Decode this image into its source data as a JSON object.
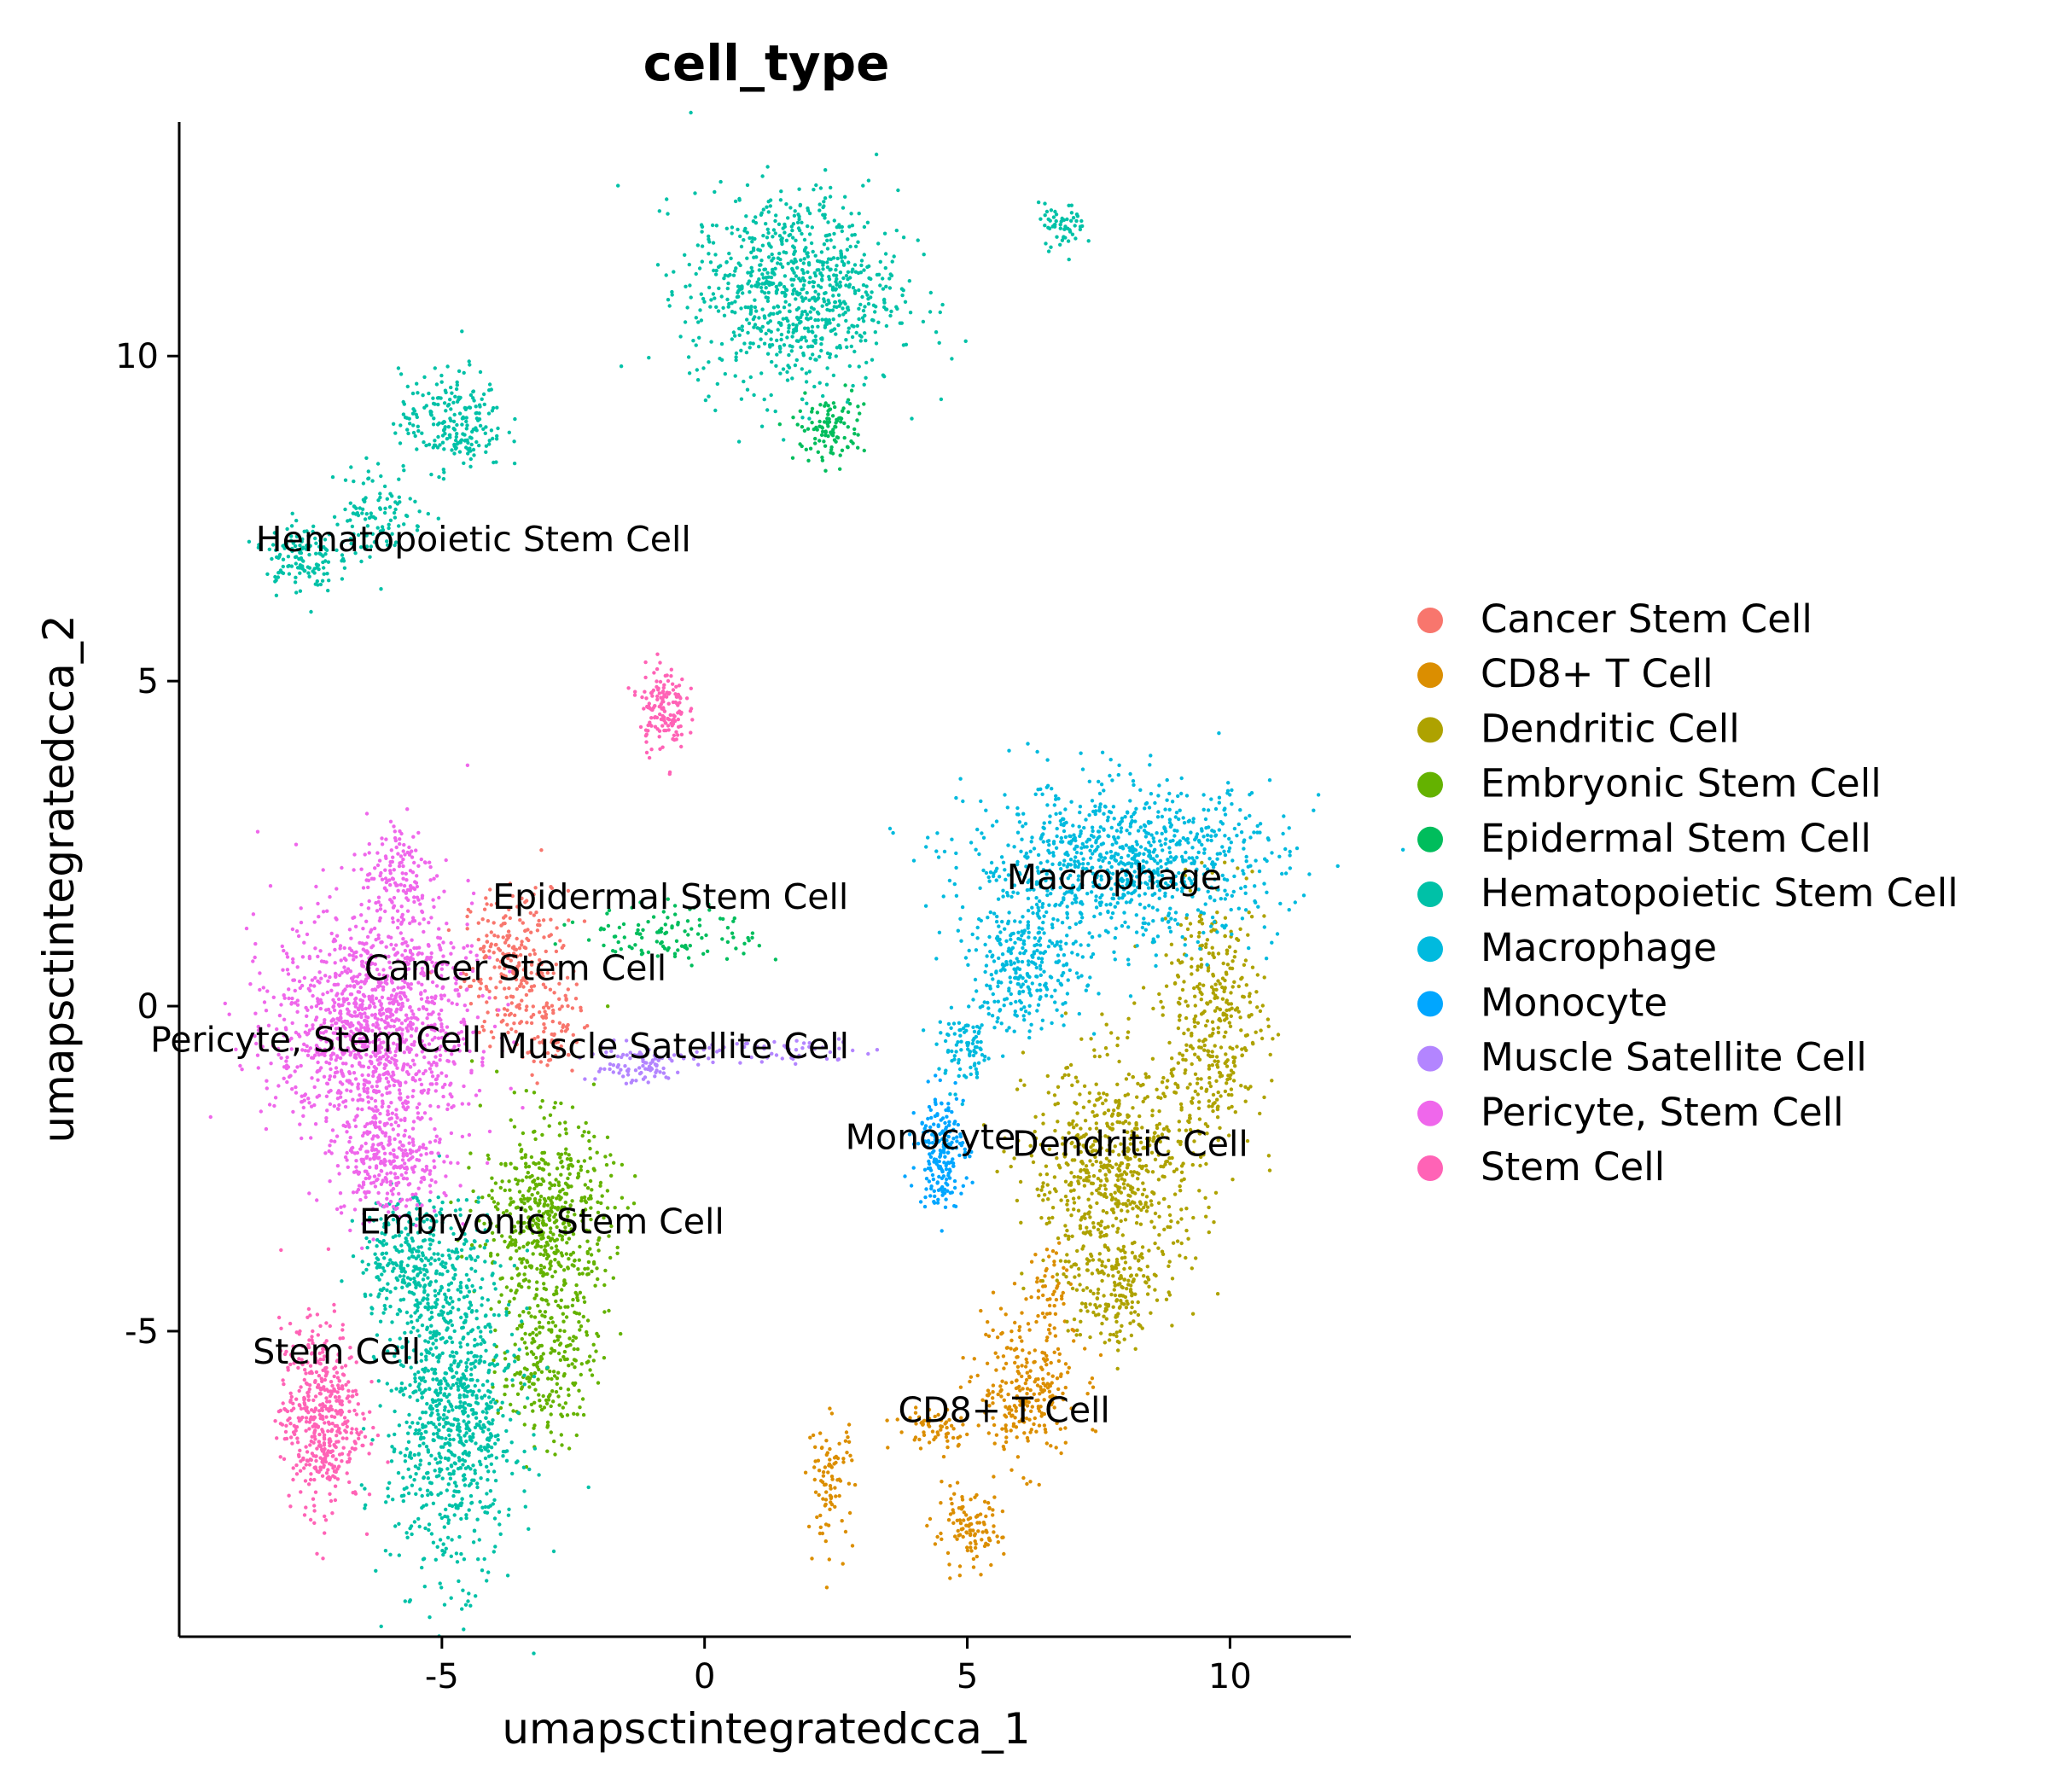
{
  "chart_data": {
    "type": "scatter",
    "title": "cell_type",
    "xlabel": "umapsctintegratedcca_1",
    "ylabel": "umapsctintegratedcca_2",
    "xlim": [
      -10,
      12.3
    ],
    "ylim": [
      -9.7,
      13.6
    ],
    "x_ticks": [
      -5,
      0,
      5,
      10
    ],
    "x_tick_labels": [
      "-5",
      "0",
      "5",
      "10"
    ],
    "y_ticks": [
      -5,
      0,
      5,
      10
    ],
    "y_tick_labels": [
      "-5",
      "0",
      "5",
      "10"
    ],
    "grid": false,
    "legend_position": "right",
    "series": [
      {
        "name": "Cancer Stem Cell",
        "color": "#F8766D",
        "label": {
          "text": "Cancer Stem Cell",
          "x": -3.6,
          "y": 0.4
        },
        "blobs": [
          {
            "cx": -3.6,
            "cy": 0.6,
            "rx": 0.9,
            "ry": 1.1,
            "n": 260
          },
          {
            "cx": -2.9,
            "cy": -0.4,
            "rx": 0.5,
            "ry": 0.6,
            "n": 60
          }
        ]
      },
      {
        "name": "CD8+ T Cell",
        "color": "#DB8E00",
        "label": {
          "text": "CD8+ T Cell",
          "x": 5.7,
          "y": -6.4
        },
        "blobs": [
          {
            "cx": 6.1,
            "cy": -5.9,
            "rx": 0.9,
            "ry": 1.0,
            "n": 260
          },
          {
            "cx": 5.0,
            "cy": -8.1,
            "rx": 0.6,
            "ry": 0.5,
            "n": 110
          },
          {
            "cx": 2.4,
            "cy": -7.3,
            "rx": 0.4,
            "ry": 0.9,
            "n": 90
          },
          {
            "cx": 4.4,
            "cy": -6.5,
            "rx": 0.7,
            "ry": 0.3,
            "n": 60
          },
          {
            "cx": 6.6,
            "cy": -4.3,
            "rx": 0.4,
            "ry": 0.7,
            "n": 50
          }
        ]
      },
      {
        "name": "Dendritic Cell",
        "color": "#AEA200",
        "label": {
          "text": "Dendritic Cell",
          "x": 8.1,
          "y": -2.3
        },
        "blobs": [
          {
            "cx": 7.8,
            "cy": -2.6,
            "rx": 1.5,
            "ry": 1.6,
            "n": 650
          },
          {
            "cx": 9.7,
            "cy": -0.2,
            "rx": 0.9,
            "ry": 1.7,
            "n": 380
          },
          {
            "cx": 7.7,
            "cy": -4.4,
            "rx": 0.8,
            "ry": 0.8,
            "n": 160
          }
        ]
      },
      {
        "name": "Embryonic Stem Cell",
        "color": "#64B200",
        "label": {
          "text": "Embryonic Stem Cell",
          "x": -3.1,
          "y": -3.5
        },
        "blobs": [
          {
            "cx": -3.0,
            "cy": -3.3,
            "rx": 1.1,
            "ry": 1.4,
            "n": 560
          },
          {
            "cx": -3.0,
            "cy": -5.4,
            "rx": 0.8,
            "ry": 1.2,
            "n": 240
          }
        ]
      },
      {
        "name": "Epidermal Stem Cell",
        "color": "#00BD5C",
        "label": {
          "text": "Epidermal Stem Cell",
          "x": -0.65,
          "y": 1.5
        },
        "blobs": [
          {
            "cx": -0.6,
            "cy": 1.1,
            "rx": 1.5,
            "ry": 0.4,
            "n": 110
          },
          {
            "cx": 2.4,
            "cy": 8.9,
            "rx": 0.6,
            "ry": 0.5,
            "n": 110
          }
        ]
      },
      {
        "name": "Hematopoietic Stem Cell",
        "color": "#00C1A7",
        "label": {
          "text": "Hematopoietic Stem Cell",
          "x": -4.4,
          "y": 7.0
        },
        "blobs": [
          {
            "cx": 1.7,
            "cy": 11.0,
            "rx": 1.8,
            "ry": 1.4,
            "n": 850
          },
          {
            "cx": -4.8,
            "cy": 9.0,
            "rx": 0.9,
            "ry": 0.7,
            "n": 220
          },
          {
            "cx": -6.2,
            "cy": 7.6,
            "rx": 0.8,
            "ry": 0.7,
            "n": 110
          },
          {
            "cx": -7.7,
            "cy": 6.9,
            "rx": 0.6,
            "ry": 0.5,
            "n": 130
          },
          {
            "cx": 6.8,
            "cy": 12.0,
            "rx": 0.4,
            "ry": 0.3,
            "n": 60
          },
          {
            "cx": -4.8,
            "cy": -6.3,
            "rx": 1.1,
            "ry": 2.2,
            "n": 900
          },
          {
            "cx": -5.5,
            "cy": -3.9,
            "rx": 1.0,
            "ry": 0.9,
            "n": 300
          }
        ]
      },
      {
        "name": "Macrophage",
        "color": "#00BADE",
        "label": {
          "text": "Macrophage",
          "x": 7.8,
          "y": 1.8
        },
        "blobs": [
          {
            "cx": 8.0,
            "cy": 2.2,
            "rx": 2.7,
            "ry": 1.1,
            "n": 950
          },
          {
            "cx": 6.1,
            "cy": 0.6,
            "rx": 1.0,
            "ry": 0.9,
            "n": 280
          },
          {
            "cx": 5.0,
            "cy": -0.7,
            "rx": 0.5,
            "ry": 0.5,
            "n": 90
          }
        ]
      },
      {
        "name": "Monocyte",
        "color": "#00A6FF",
        "label": {
          "text": "Monocyte",
          "x": 4.3,
          "y": -2.2
        },
        "blobs": [
          {
            "cx": 4.5,
            "cy": -2.2,
            "rx": 0.4,
            "ry": 0.8,
            "n": 200
          }
        ]
      },
      {
        "name": "Muscle Satellite Cell",
        "color": "#B385FF",
        "label": {
          "text": "Muscle Satellite Cell",
          "x": -0.6,
          "y": -0.8
        },
        "blobs": [
          {
            "cx": -1.4,
            "cy": -0.9,
            "rx": 0.9,
            "ry": 0.3,
            "n": 90
          },
          {
            "cx": 1.4,
            "cy": -0.7,
            "rx": 1.6,
            "ry": 0.2,
            "n": 50
          }
        ]
      },
      {
        "name": "Pericyte, Stem Cell",
        "color": "#EF67EB",
        "label": {
          "text": "Pericyte, Stem Cell",
          "x": -7.4,
          "y": -0.7
        },
        "blobs": [
          {
            "cx": -6.3,
            "cy": -0.3,
            "rx": 1.7,
            "ry": 1.7,
            "n": 1300
          },
          {
            "cx": -5.8,
            "cy": 2.1,
            "rx": 0.6,
            "ry": 0.8,
            "n": 120
          },
          {
            "cx": -6.0,
            "cy": -2.4,
            "rx": 0.9,
            "ry": 0.8,
            "n": 280
          }
        ]
      },
      {
        "name": "Stem Cell",
        "color": "#FF63B6",
        "label": {
          "text": "Stem Cell",
          "x": -7.0,
          "y": -5.5
        },
        "blobs": [
          {
            "cx": -7.3,
            "cy": -6.3,
            "rx": 0.7,
            "ry": 1.3,
            "n": 480
          },
          {
            "cx": -0.8,
            "cy": 4.6,
            "rx": 0.4,
            "ry": 0.6,
            "n": 150
          }
        ]
      }
    ]
  }
}
